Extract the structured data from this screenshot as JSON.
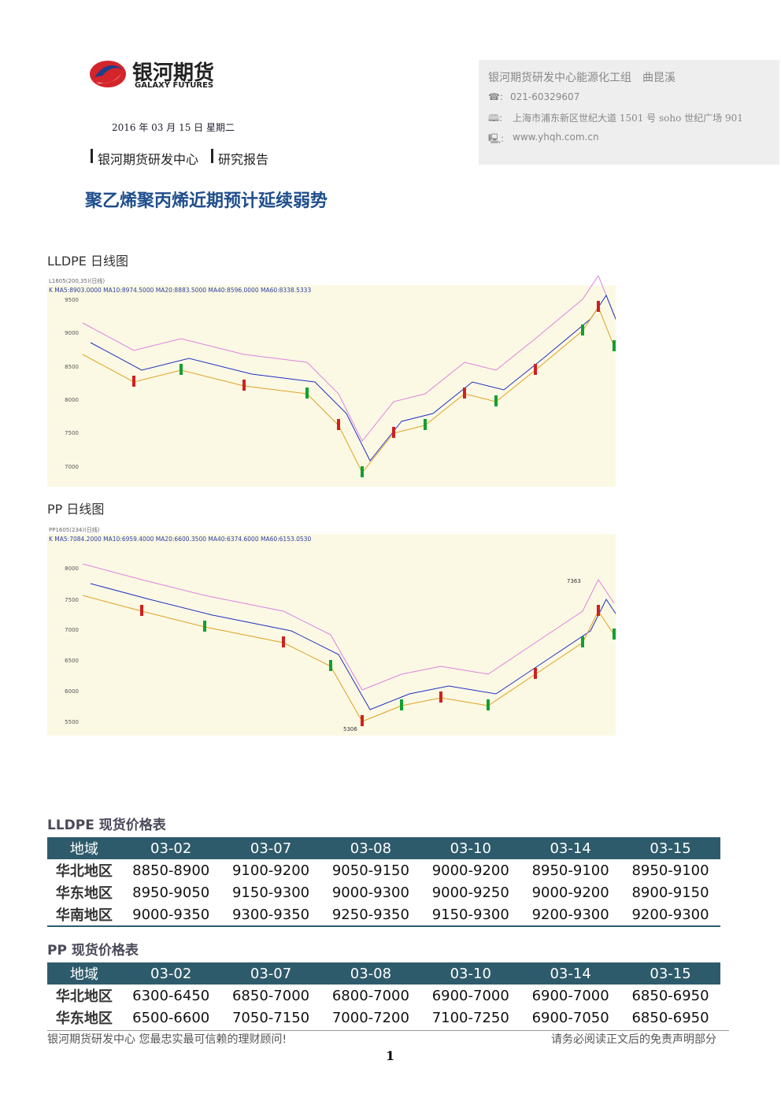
{
  "header": {
    "logo_cn": "银河期货",
    "logo_en": "GALAXY FUTURES",
    "date": "2016 年 03 月 15 日 星期二",
    "dept": "银河期货研发中心",
    "report": "研究报告",
    "title": "聚乙烯聚丙烯近期预计延续弱势"
  },
  "contact": {
    "group": "银河期货研发中心能源化工组　曲昆溪",
    "phone": "021-60329607",
    "address": "上海市浦东新区世纪大道 1501 号 soho 世纪广场 901",
    "web": "www.yhqh.com.cn"
  },
  "charts": [
    {
      "caption": "LLDPE 日线图",
      "header": "L1605(200,35)(日线)",
      "legend": "K  MA5:8903.0000  MA10:8974.5000  MA20:8883.5000  MA40:8596.0000  MA60:8338.5333",
      "yticks": [
        "9500",
        "9000",
        "8500",
        "8000",
        "7500",
        "7000"
      ],
      "high": "9430",
      "low": "6765"
    },
    {
      "caption": "PP 日线图",
      "header": "PP1605(234)(日线)",
      "legend": "K  MA5:7084.2000  MA10:6959.4000  MA20:6600.3500  MA40:6374.6000  MA60:6153.0530",
      "yticks": [
        "8000",
        "7500",
        "7000",
        "6500",
        "6000",
        "5500"
      ],
      "high": "7363",
      "low": "5306"
    }
  ],
  "tables": [
    {
      "title": "LLDPE 现货价格表",
      "columns": [
        "地域",
        "03-02",
        "03-07",
        "03-08",
        "03-10",
        "03-14",
        "03-15"
      ],
      "rows": [
        [
          "华北地区",
          "8850-8900",
          "9100-9200",
          "9050-9150",
          "9000-9200",
          "8950-9100",
          "8950-9100"
        ],
        [
          "华东地区",
          "8950-9050",
          "9150-9300",
          "9000-9300",
          "9000-9250",
          "9000-9200",
          "8900-9150"
        ],
        [
          "华南地区",
          "9000-9350",
          "9300-9350",
          "9250-9350",
          "9150-9300",
          "9200-9300",
          "9200-9300"
        ]
      ]
    },
    {
      "title": "PP 现货价格表",
      "columns": [
        "地域",
        "03-02",
        "03-07",
        "03-08",
        "03-10",
        "03-14",
        "03-15"
      ],
      "rows": [
        [
          "华北地区",
          "6300-6450",
          "6850-7000",
          "6800-7000",
          "6900-7000",
          "6900-7000",
          "6850-6950"
        ],
        [
          "华东地区",
          "6500-6600",
          "7050-7150",
          "7000-7200",
          "7100-7250",
          "6900-7050",
          "6850-6950"
        ]
      ]
    }
  ],
  "footer": {
    "left": "银河期货研发中心  您最忠实最可信赖的理财顾问!",
    "right": "请务必阅读正文后的免责声明部分",
    "page": "1"
  }
}
